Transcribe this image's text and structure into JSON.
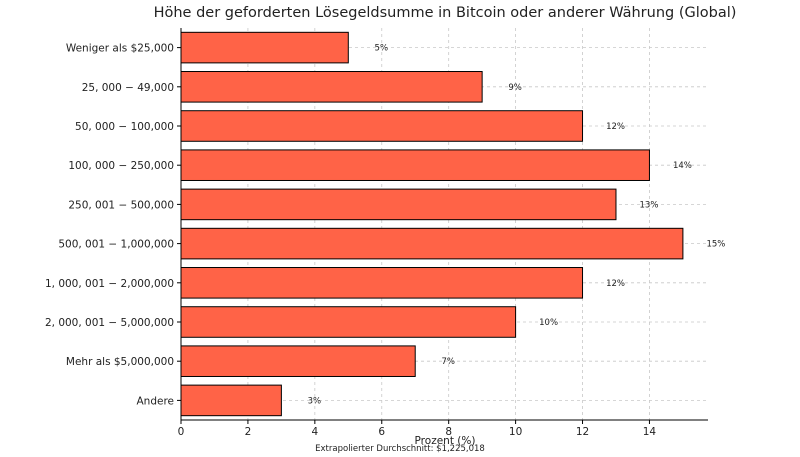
{
  "chart_data": {
    "type": "bar",
    "orientation": "horizontal",
    "title": "Höhe der geforderten Lösegeldsumme in Bitcoin oder anderer Währung (Global)",
    "xlabel": "Prozent (%)",
    "ylabel": "",
    "xlim": [
      0,
      15.75
    ],
    "x_ticks": [
      0,
      2,
      4,
      6,
      8,
      10,
      12,
      14
    ],
    "grid": true,
    "categories": [
      "Weniger als $25,000",
      "25, 000 − 49,000",
      "50, 000 − 100,000",
      "100, 000 − 250,000",
      "250, 001 − 500,000",
      "500, 001 − 1,000,000",
      "1, 000, 001 − 2,000,000",
      "2, 000, 001 − 5,000,000",
      "Mehr als $5,000,000",
      "Andere"
    ],
    "values": [
      5,
      9,
      12,
      14,
      13,
      15,
      12,
      10,
      7,
      3
    ],
    "data_labels": [
      "5%",
      "9%",
      "12%",
      "14%",
      "13%",
      "15%",
      "12%",
      "10%",
      "7%",
      "3%"
    ],
    "annotation": "Extrapolierter Durchschnitt: $1,225,018",
    "colors": {
      "bar": "#ff6347",
      "edge": "#000000",
      "grid": "#c8c8c8"
    }
  }
}
